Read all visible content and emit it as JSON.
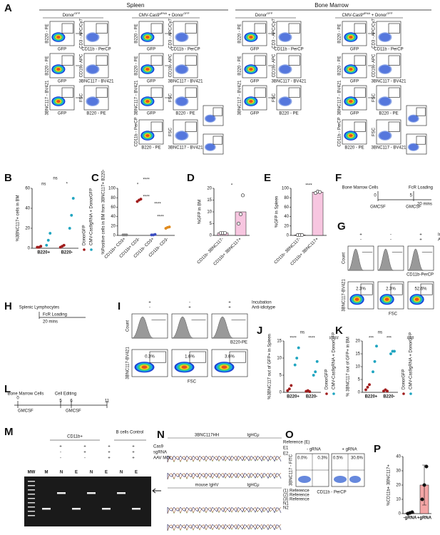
{
  "panels": {
    "A": {
      "letter": "A",
      "spleen": "Spleen",
      "bone_marrow": "Bone Marrow",
      "group1": "Donor",
      "group1_sup": "GFP",
      "group2": "CMV-Cas9",
      "group2_sup": "gRNA",
      "group2_mid": " + Donor",
      "group2_sup2": "GFP",
      "y_labels": [
        "B220 - PE",
        "B220 - PE",
        "3BNC117 - BV421"
      ],
      "x_labels": [
        "GFP",
        "GFP",
        "GFP"
      ],
      "y2_labels": [
        "CD3 - APC/Cy7",
        "CD19 - APC",
        "FSC"
      ],
      "x2_labels": [
        "CD11b - PerCP",
        "3BNC117 - BV421",
        "B220 - PE"
      ],
      "extra_y": [
        "CD11b - PerCP",
        "FSC"
      ],
      "extra_x": [
        "B220 - PE",
        "3BNC117 - BV421"
      ]
    },
    "F": {
      "letter": "F",
      "title": "Bone Marrow Cells",
      "step": "FcR Loading",
      "t0": "0",
      "t1": "5",
      "duration": "20 mins",
      "media1": "GMCSF",
      "media2": "GMCSF"
    },
    "G": {
      "letter": "G",
      "row1": "Incubation",
      "row2": "Anti-idiotype",
      "signs1": [
        "+",
        "-",
        "+"
      ],
      "signs2": [
        "-",
        "-",
        "+"
      ],
      "hist_y": "Count",
      "hist_x": "CD11b-PerCP",
      "dot_y": "3BNC117-BV421",
      "dot_x": "FSC",
      "percents": [
        "2.3%",
        "2.3%",
        "52.6%"
      ]
    },
    "H": {
      "letter": "H",
      "title": "Splenic Lymphocytes",
      "step": "FcR Loading",
      "duration": "20 mins"
    },
    "I": {
      "letter": "I",
      "row1": "Incubation",
      "row2": "Anti-idiotype",
      "signs1": [
        "+",
        "-",
        "+"
      ],
      "signs2": [
        "-",
        "+",
        "+"
      ],
      "hist_y": "Count",
      "hist_x": "B220-PE",
      "dot_y": "3BNC117-BV421",
      "dot_x": "FSC",
      "percents": [
        "0.3%",
        "1.6%",
        "3.6%"
      ]
    },
    "L": {
      "letter": "L",
      "title": "Bone Marrow Cells",
      "step": "Cell Editing",
      "ticks": [
        "0",
        "5",
        "6",
        "11"
      ],
      "media1": "GMCSF",
      "media2": "GMCSF"
    },
    "M": {
      "letter": "M",
      "group1": "CD11b+",
      "group2": "B cells Control",
      "rows": [
        "Cas9",
        "sgRNA",
        "AAV MOI"
      ],
      "signs": [
        [
          "+",
          "+",
          "+",
          "+"
        ],
        [
          "-",
          "+",
          "+",
          "+"
        ],
        [
          "-",
          "-",
          "+",
          "+"
        ]
      ],
      "lanes": [
        "MW",
        "M",
        "N",
        "E",
        "N",
        "E",
        "N",
        "E"
      ]
    },
    "N": {
      "letter": "N",
      "top_labels": [
        "3BNC117HH",
        "IgHCμ"
      ],
      "top_rows": [
        "Reference (E)",
        "E1",
        "E2"
      ],
      "bottom_labels": [
        "mouse IgHV",
        "IgHCμ"
      ],
      "bottom_rows": [
        "(1) Reference",
        "(2) Reference",
        "(3) Reference",
        "N1",
        "N2"
      ]
    },
    "O": {
      "letter": "O",
      "left": "- gRNA",
      "right": "+ gRNA",
      "y_label": "3BNC117 - FITC",
      "x_label": "CD11b - PerCP",
      "percents": [
        "0.0%",
        "0.3%",
        "0.5%",
        "30.6%"
      ]
    }
  },
  "chart_data": [
    {
      "type": "strip",
      "label": "B",
      "y_label": "%3BNC117+ cells in BM",
      "categories": [
        "B220+",
        "B220-"
      ],
      "ylim": [
        0,
        60
      ],
      "yticks": [
        0,
        20,
        40,
        60
      ],
      "series": [
        {
          "name": "DonorGFP",
          "color": "#a01c1c",
          "values": [
            [
              1,
              1,
              2
            ],
            [
              1,
              2,
              3
            ]
          ]
        },
        {
          "name": "CMV-Cas9gRNA + DonorGFP",
          "color": "#1fa5c0",
          "values": [
            [
              3,
              8,
              15
            ],
            [
              20,
              33,
              50
            ]
          ]
        }
      ],
      "annotations": [
        "ns",
        "ns",
        "*"
      ]
    },
    {
      "type": "strip",
      "label": "C",
      "y_label": "%Positive cells in BM from 3BNC117+ B220-",
      "categories": [
        "CD11b+ CD3+",
        "CD11b+ CD3-",
        "CD11b- CD3+",
        "CD11b- CD3-"
      ],
      "ylim": [
        0,
        100
      ],
      "yticks": [
        0,
        20,
        40,
        60,
        80,
        100
      ],
      "point_colors": [
        "#808080",
        "#a01c1c",
        "#3b4cc0",
        "#e08a1e"
      ],
      "series": [
        {
          "values": [
            [
              1,
              1,
              1
            ],
            [
              72,
              75,
              77
            ],
            [
              1,
              1,
              2
            ],
            [
              15,
              17,
              18
            ]
          ]
        }
      ],
      "annotations": [
        "****",
        "*",
        "****",
        "****",
        "****"
      ]
    },
    {
      "type": "bar",
      "label": "D",
      "y_label": "%GFP in BM",
      "categories": [
        "CD11b- 3BNC117-",
        "CD11b+ 3BNC117+"
      ],
      "ylim": [
        0,
        20
      ],
      "yticks": [
        0,
        5,
        10,
        15,
        20
      ],
      "color": "#f7c6e0",
      "values": [
        1,
        10
      ],
      "points": [
        [
          1,
          1,
          1
        ],
        [
          5,
          9,
          17
        ]
      ],
      "annotations": [
        "*"
      ]
    },
    {
      "type": "bar",
      "label": "E",
      "y_label": "%GFP in Spleen",
      "categories": [
        "CD11b- 3BNC117-",
        "CD11b+ 3BNC117+"
      ],
      "ylim": [
        0,
        100
      ],
      "yticks": [
        0,
        20,
        40,
        60,
        80,
        100
      ],
      "color": "#f7c6e0",
      "values": [
        1,
        92
      ],
      "points": [
        [
          1,
          1,
          1
        ],
        [
          90,
          93,
          92
        ]
      ],
      "annotations": [
        "****"
      ]
    },
    {
      "type": "strip",
      "label": "J",
      "y_label": "%3BNC117 out of GFP+ in Spleen",
      "categories": [
        "B220+",
        "B220-"
      ],
      "ylim": [
        0,
        15
      ],
      "yticks": [
        0,
        5,
        10,
        15
      ],
      "series": [
        {
          "name": "DonorGFP",
          "color": "#a01c1c",
          "values": [
            [
              0.5,
              1,
              2
            ],
            [
              0.3,
              0.5,
              0.2
            ]
          ]
        },
        {
          "name": "CMV-Cas9gRNA + DonorGFP",
          "color": "#1fa5c0",
          "values": [
            [
              8,
              10,
              13
            ],
            [
              5,
              6,
              9
            ]
          ]
        }
      ],
      "annotations": [
        "ns",
        "****",
        "****",
        "####"
      ]
    },
    {
      "type": "strip",
      "label": "K",
      "y_label": "% 3BNC117 out of GFP+ in BM",
      "categories": [
        "B220+",
        "B220-"
      ],
      "ylim": [
        0,
        20
      ],
      "yticks": [
        0,
        5,
        10,
        15,
        20
      ],
      "series": [
        {
          "name": "DonorGFP",
          "color": "#a01c1c",
          "values": [
            [
              1,
              2,
              3
            ],
            [
              0.5,
              1,
              0.5
            ]
          ]
        },
        {
          "name": "CMV-Cas9gRNA + DonorGFP",
          "color": "#1fa5c0",
          "values": [
            [
              8,
              12,
              18
            ],
            [
              15,
              16,
              16
            ]
          ]
        }
      ],
      "annotations": [
        "ns",
        "***",
        "***",
        "###"
      ]
    },
    {
      "type": "bar",
      "label": "P",
      "y_label": "%CD11b+ 3BNC117+",
      "categories": [
        "-gRNA",
        "+gRNA"
      ],
      "ylim": [
        0,
        40
      ],
      "yticks": [
        0,
        10,
        20,
        30,
        40
      ],
      "color": "#f4a6a6",
      "values": [
        0.5,
        20
      ],
      "errors": [
        0.5,
        14
      ],
      "points": [
        [
          0,
          0.5,
          1
        ],
        [
          10,
          20,
          33
        ]
      ]
    }
  ]
}
